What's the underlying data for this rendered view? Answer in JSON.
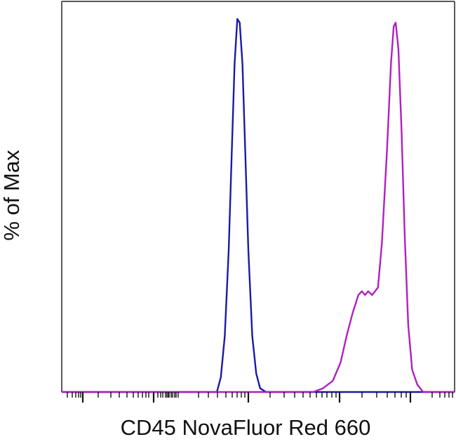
{
  "chart_data": {
    "type": "line",
    "title": "",
    "xlabel": "CD45 NovaFluor Red 660",
    "ylabel": "% of Max",
    "x_scale": "biexponential (unlabeled)",
    "tick_labels_shown": false,
    "grid": false,
    "legend": "none",
    "ylim": [
      0,
      100
    ],
    "series": [
      {
        "color": "#1a1aa6",
        "points": [
          [
            0.0,
            0
          ],
          [
            0.395,
            0
          ],
          [
            0.405,
            4
          ],
          [
            0.415,
            15
          ],
          [
            0.425,
            38
          ],
          [
            0.433,
            65
          ],
          [
            0.44,
            88
          ],
          [
            0.447,
            100
          ],
          [
            0.453,
            99
          ],
          [
            0.46,
            88
          ],
          [
            0.467,
            65
          ],
          [
            0.475,
            38
          ],
          [
            0.485,
            15
          ],
          [
            0.495,
            5
          ],
          [
            0.505,
            1
          ],
          [
            0.52,
            0
          ],
          [
            1.0,
            0
          ]
        ]
      },
      {
        "color": "#b020c0",
        "points": [
          [
            0.0,
            0
          ],
          [
            0.64,
            0
          ],
          [
            0.665,
            1
          ],
          [
            0.69,
            3
          ],
          [
            0.71,
            8
          ],
          [
            0.725,
            15
          ],
          [
            0.74,
            21
          ],
          [
            0.755,
            26
          ],
          [
            0.764,
            27
          ],
          [
            0.772,
            26
          ],
          [
            0.78,
            27
          ],
          [
            0.79,
            26
          ],
          [
            0.805,
            28
          ],
          [
            0.815,
            40
          ],
          [
            0.828,
            65
          ],
          [
            0.838,
            88
          ],
          [
            0.845,
            98
          ],
          [
            0.85,
            99
          ],
          [
            0.857,
            92
          ],
          [
            0.865,
            70
          ],
          [
            0.873,
            42
          ],
          [
            0.882,
            18
          ],
          [
            0.892,
            6
          ],
          [
            0.905,
            2
          ],
          [
            0.92,
            0
          ],
          [
            1.0,
            0
          ]
        ]
      }
    ]
  }
}
